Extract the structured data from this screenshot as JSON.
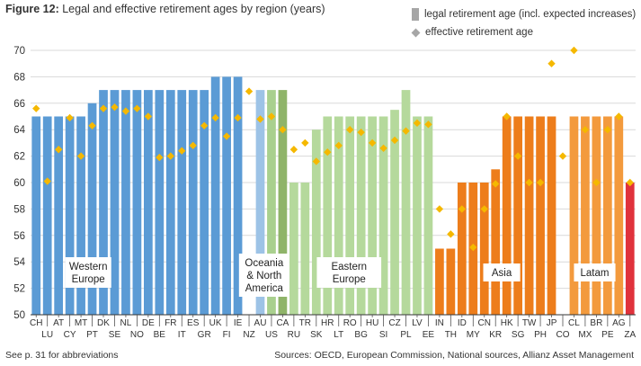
{
  "chart_data": {
    "type": "bar",
    "title_prefix": "Figure 12:",
    "title": "Legal and effective retirement ages by region (years)",
    "xlabel": "",
    "ylabel": "",
    "ylim": [
      50,
      70
    ],
    "yticks": [
      50,
      52,
      54,
      56,
      58,
      60,
      62,
      64,
      66,
      68,
      70
    ],
    "grid": true,
    "legend_position": "top-right",
    "legend": [
      {
        "type": "bar",
        "label": "legal retirement age (incl. expected increases)",
        "color": "#a6a6a6"
      },
      {
        "type": "diamond",
        "label": "effective retirement age",
        "color": "#a6a6a6"
      }
    ],
    "categories": [
      "CH",
      "LU",
      "AT",
      "CY",
      "MT",
      "PT",
      "DK",
      "SE",
      "NL",
      "NO",
      "DE",
      "BE",
      "FR",
      "IT",
      "ES",
      "GR",
      "UK",
      "FI",
      "IE",
      "NZ",
      "AU",
      "US",
      "CA",
      "RU",
      "TR",
      "SK",
      "HR",
      "LT",
      "RO",
      "BG",
      "HU",
      "SI",
      "CZ",
      "PL",
      "LV",
      "EE",
      "IN",
      "TH",
      "ID",
      "MY",
      "CN",
      "KR",
      "HK",
      "SG",
      "TW",
      "PH",
      "JP",
      "CO",
      "CL",
      "MX",
      "BR",
      "PE",
      "AG",
      "ZA"
    ],
    "series": [
      {
        "name": "legal retirement age (incl. expected increases)",
        "type": "bar",
        "values": [
          65,
          65,
          65,
          65,
          65,
          66,
          67,
          67,
          67,
          67,
          67,
          67,
          67,
          67,
          67,
          67,
          68,
          68,
          68,
          null,
          67,
          67,
          67,
          60,
          60,
          64,
          65,
          65,
          65,
          65,
          65,
          65,
          65.5,
          67,
          65,
          65,
          55,
          55,
          60,
          60,
          60,
          61,
          65,
          65,
          65,
          65,
          65,
          null,
          65,
          65,
          65,
          65,
          65,
          60
        ]
      },
      {
        "name": "effective retirement age",
        "type": "scatter",
        "marker": "diamond",
        "color": "#f5b800",
        "values": [
          65.6,
          60.1,
          62.5,
          64.9,
          62,
          64.3,
          65.6,
          65.7,
          65.4,
          65.6,
          65,
          61.9,
          62,
          62.4,
          62.8,
          64.3,
          64.9,
          63.5,
          64.9,
          66.9,
          64.8,
          65,
          64,
          62.5,
          63,
          61.6,
          62.3,
          62.8,
          64,
          63.8,
          63,
          62.6,
          63.2,
          63.9,
          64.5,
          64.4,
          58,
          56.1,
          58,
          55.1,
          58,
          59.9,
          65,
          62,
          60,
          60,
          69,
          62,
          70,
          64,
          60,
          64,
          65,
          60
        ]
      }
    ],
    "regions": [
      {
        "name": "Western Europe",
        "label_lines": [
          "Western",
          "Europe"
        ],
        "from": "CH",
        "to": "IE",
        "color": "#5b9bd5"
      },
      {
        "name": "Oceania & North America",
        "label_lines": [
          "Oceania",
          "& North",
          "America"
        ],
        "from": "NZ",
        "to": "CA",
        "colors": {
          "AU": "#9dc3e6",
          "US": "#a9d08e",
          "CA": "#8fb469"
        }
      },
      {
        "name": "Eastern Europe",
        "label_lines": [
          "Eastern",
          "Europe"
        ],
        "from": "RU",
        "to": "EE",
        "color": "#b5d99c"
      },
      {
        "name": "Asia",
        "label_lines": [
          "Asia"
        ],
        "from": "IN",
        "to": "JP",
        "color": "#ed7d1b"
      },
      {
        "name": "Latam",
        "label_lines": [
          "Latam"
        ],
        "from": "CO",
        "to": "AG",
        "color": "#f39a3d"
      },
      {
        "name": "South Africa",
        "label_lines": [],
        "from": "ZA",
        "to": "ZA",
        "color": "#e0323c"
      }
    ]
  },
  "footer": {
    "note": "See p. 31 for abbreviations",
    "sources": "Sources: OECD, European Commission, National sources, Allianz Asset Management"
  }
}
